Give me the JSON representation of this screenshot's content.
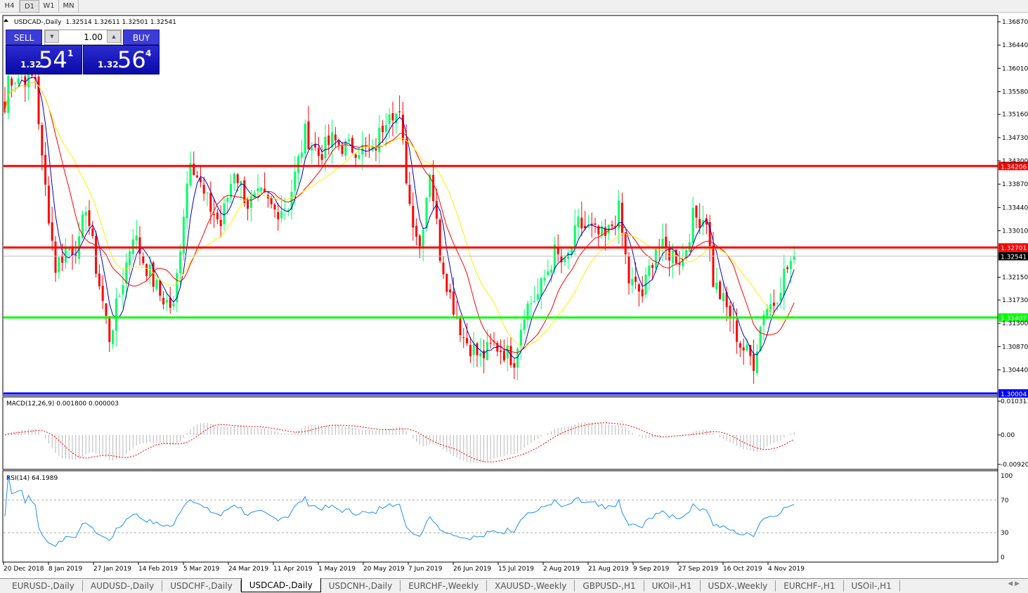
{
  "timeframes": [
    "H4",
    "D1",
    "W1",
    "MN"
  ],
  "active_timeframe": "D1",
  "chart": {
    "symbol_header": "USDCAD-,Daily",
    "ohlc": "1.32514 1.32611 1.32501 1.32541",
    "price_axis": [
      "1.36870",
      "1.36440",
      "1.36010",
      "1.35580",
      "1.35160",
      "1.34730",
      "1.34300",
      "1.33870",
      "1.33440",
      "1.33010",
      "1.32150",
      "1.31730",
      "1.31300",
      "1.30870",
      "1.30440"
    ],
    "levels": [
      {
        "price": "1.34206",
        "color": "#ff0000"
      },
      {
        "price": "1.32701",
        "color": "#ff0000"
      },
      {
        "price": "1.31407",
        "color": "#00ff00"
      },
      {
        "price": "1.30004",
        "color": "#0000ff"
      }
    ],
    "current_price": "1.32541",
    "dates": [
      "20 Dec 2018",
      "8 Jan 2019",
      "27 Jan 2019",
      "14 Feb 2019",
      "5 Mar 2019",
      "24 Mar 2019",
      "11 Apr 2019",
      "1 May 2019",
      "20 May 2019",
      "7 Jun 2019",
      "26 Jun 2019",
      "15 Jul 2019",
      "2 Aug 2019",
      "21 Aug 2019",
      "9 Sep 2019",
      "27 Sep 2019",
      "16 Oct 2019",
      "4 Nov 2019"
    ],
    "colors": {
      "bull": "#00ff66",
      "bear": "#ff0000",
      "ma_fast": "#0000c0",
      "ma_mid": "#ff0000",
      "ma_slow": "#ffee00"
    }
  },
  "trade_panel": {
    "sell_label": "SELL",
    "buy_label": "BUY",
    "lot": "1.00",
    "sell": {
      "prefix": "1.32",
      "big": "54",
      "sup": "1"
    },
    "buy": {
      "prefix": "1.32",
      "big": "56",
      "sup": "4"
    }
  },
  "macd": {
    "label": "MACD(12,26,9) 0.001800 0.000003",
    "axis": [
      "0.010311",
      "0.00",
      "-0.009203"
    ]
  },
  "rsi": {
    "label": "RSI(14) 64.1989",
    "axis": [
      "100",
      "70",
      "30",
      "0"
    ]
  },
  "chart_data": {
    "type": "candlestick",
    "close_anchors": [
      [
        0,
        1.352
      ],
      [
        1,
        1.35845
      ],
      [
        5,
        1.35845
      ],
      [
        9,
        1.35845
      ],
      [
        11,
        1.34287
      ],
      [
        15,
        1.3234
      ],
      [
        18,
        1.32665
      ],
      [
        22,
        1.3273
      ],
      [
        24,
        1.33509
      ],
      [
        27,
        1.3234
      ],
      [
        31,
        1.31043
      ],
      [
        34,
        1.31821
      ],
      [
        38,
        1.32989
      ],
      [
        41,
        1.3247
      ],
      [
        46,
        1.31821
      ],
      [
        50,
        1.31562
      ],
      [
        53,
        1.33379
      ],
      [
        55,
        1.34417
      ],
      [
        59,
        1.33638
      ],
      [
        64,
        1.33119
      ],
      [
        68,
        1.34157
      ],
      [
        72,
        1.33509
      ],
      [
        76,
        1.33638
      ],
      [
        80,
        1.33379
      ],
      [
        84,
        1.33509
      ],
      [
        89,
        1.34806
      ],
      [
        93,
        1.34417
      ],
      [
        97,
        1.34677
      ],
      [
        101,
        1.34547
      ],
      [
        105,
        1.34547
      ],
      [
        109,
        1.34417
      ],
      [
        114,
        1.35326
      ],
      [
        117,
        1.35066
      ],
      [
        120,
        1.33509
      ],
      [
        123,
        1.3273
      ],
      [
        126,
        1.34157
      ],
      [
        129,
        1.326
      ],
      [
        132,
        1.31821
      ],
      [
        136,
        1.31043
      ],
      [
        141,
        1.30653
      ],
      [
        145,
        1.30913
      ],
      [
        148,
        1.30783
      ],
      [
        151,
        1.30653
      ],
      [
        154,
        1.31562
      ],
      [
        158,
        1.31821
      ],
      [
        163,
        1.326
      ],
      [
        166,
        1.3234
      ],
      [
        170,
        1.33119
      ],
      [
        174,
        1.32989
      ],
      [
        178,
        1.3286
      ],
      [
        182,
        1.33379
      ],
      [
        185,
        1.32081
      ],
      [
        189,
        1.31821
      ],
      [
        193,
        1.3273
      ],
      [
        197,
        1.326
      ],
      [
        201,
        1.3247
      ],
      [
        204,
        1.33249
      ],
      [
        208,
        1.33249
      ],
      [
        210,
        1.32081
      ],
      [
        215,
        1.31433
      ],
      [
        218,
        1.30913
      ],
      [
        222,
        1.30588
      ],
      [
        225,
        1.31562
      ],
      [
        228,
        1.3169
      ],
      [
        231,
        1.32211
      ],
      [
        234,
        1.32541
      ]
    ]
  }
}
